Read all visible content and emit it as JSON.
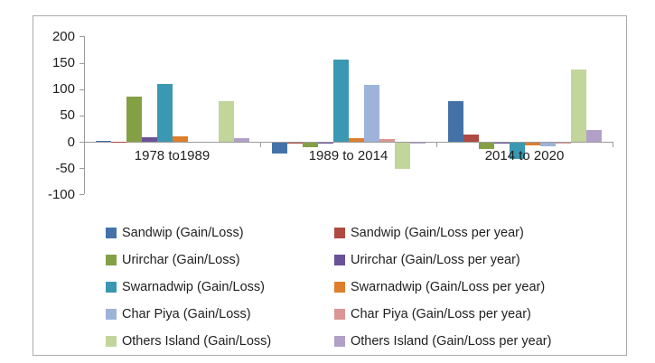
{
  "frame": {
    "border_color": "#ababab",
    "background": "#ffffff"
  },
  "chart_data": {
    "type": "bar",
    "title": "",
    "xlabel": "",
    "ylabel": "",
    "categories": [
      "1978 to1989",
      "1989 to 2014",
      "2014 to 2020"
    ],
    "series": [
      {
        "name": "Sandwip (Gain/Loss)",
        "color": "#4472a8",
        "values": [
          2,
          -20,
          78
        ]
      },
      {
        "name": "Sandwip (Gain/Loss per year)",
        "color": "#ae4a41",
        "values": [
          0.2,
          -0.8,
          13
        ]
      },
      {
        "name": "Urirchar (Gain/Loss)",
        "color": "#84a045",
        "values": [
          86,
          -9,
          -12
        ]
      },
      {
        "name": "Urirchar (Gain/Loss per year)",
        "color": "#6a5296",
        "values": [
          7.8,
          -0.4,
          -2
        ]
      },
      {
        "name": "Swarnadwip (Gain/Loss)",
        "color": "#3b98b2",
        "values": [
          110,
          156,
          -30
        ]
      },
      {
        "name": "Swarnadwip (Gain/Loss per year)",
        "color": "#de7e2c",
        "values": [
          10,
          6.2,
          -5
        ]
      },
      {
        "name": "Char Piya (Gain/Loss)",
        "color": "#9db3da",
        "values": [
          0,
          108,
          -7
        ]
      },
      {
        "name": "Char Piya (Gain/Loss per year)",
        "color": "#d99694",
        "values": [
          0,
          4.3,
          -1.2
        ]
      },
      {
        "name": "Others Island (Gain/Loss)",
        "color": "#c2d59b",
        "values": [
          77,
          -50,
          138
        ]
      },
      {
        "name": "Others Island (Gain/Loss per year)",
        "color": "#b1a1c9",
        "values": [
          7,
          -2,
          23
        ]
      }
    ],
    "y_axis": {
      "min": -100,
      "max": 200,
      "step": 50,
      "tick_labels": [
        "200",
        "150",
        "100",
        "50",
        "0",
        "-50",
        "-100"
      ]
    },
    "grid": false,
    "legend_position": "bottom",
    "legend_columns": {
      "left_series_indices": [
        0,
        2,
        4,
        6,
        8
      ],
      "right_series_indices": [
        1,
        3,
        5,
        7,
        9
      ]
    },
    "axis_color": "#9b9b9b",
    "text_color": "#1f1f1f"
  }
}
